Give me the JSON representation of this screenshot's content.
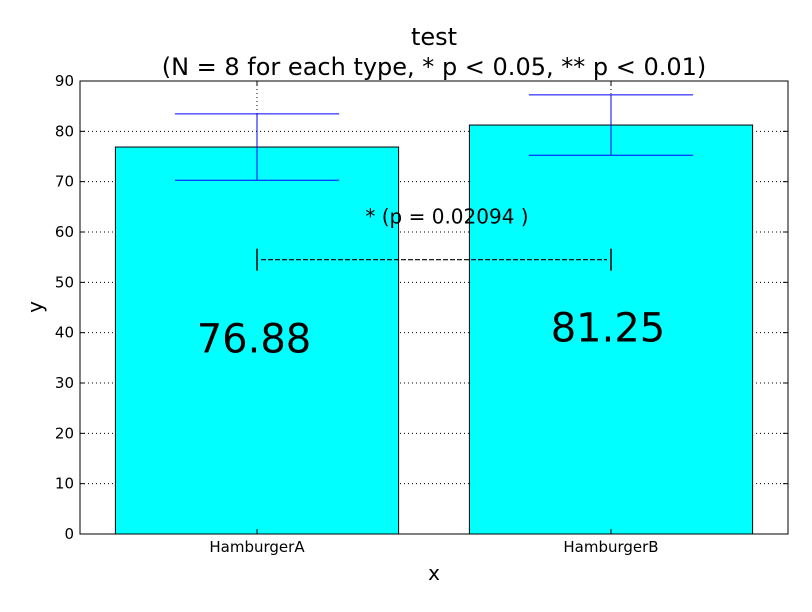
{
  "chart_data": {
    "type": "bar",
    "title": "test",
    "subtitle": "(N = 8 for each type, * p < 0.05, ** p < 0.01)",
    "xlabel": "x",
    "ylabel": "y",
    "ylim": [
      0,
      90
    ],
    "yticks": [
      "0",
      "10",
      "20",
      "30",
      "40",
      "50",
      "60",
      "70",
      "80",
      "90"
    ],
    "grid": true,
    "categories": [
      "HamburgerA",
      "HamburgerB"
    ],
    "values": [
      76.88,
      81.25
    ],
    "value_labels": [
      "76.88",
      "81.25"
    ],
    "errors": [
      6.6,
      6.0
    ],
    "bar_color": "#00ffff",
    "error_color": "#0000ff",
    "significance": {
      "label": "* (p = 0.02094 )",
      "from": "HamburgerA",
      "to": "HamburgerB",
      "y": 54.5
    }
  }
}
